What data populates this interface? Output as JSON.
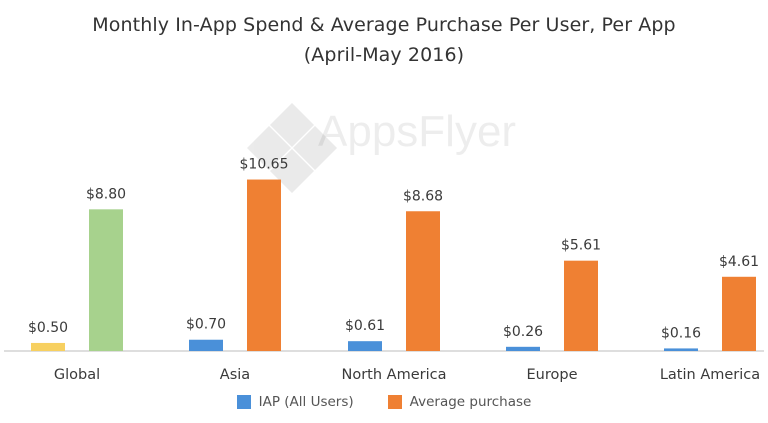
{
  "chart_data": {
    "type": "bar",
    "title": "Monthly In-App Spend & Average Purchase Per User, Per App",
    "subtitle": "(April-May 2016)",
    "categories": [
      "Global",
      "Asia",
      "North America",
      "Europe",
      "Latin America"
    ],
    "series": [
      {
        "name": "IAP (All Users)",
        "color": "#4a90d9",
        "values": [
          0.5,
          0.7,
          0.61,
          0.26,
          0.16
        ],
        "labels": [
          "$0.50",
          "$0.70",
          "$0.61",
          "$0.26",
          "$0.16"
        ]
      },
      {
        "name": "Average purchase",
        "color": "#ef8033",
        "values": [
          8.8,
          10.65,
          8.68,
          5.61,
          4.61
        ],
        "labels": [
          "$8.80",
          "$10.65",
          "$8.68",
          "$5.61",
          "$4.61"
        ]
      }
    ],
    "global_colors": {
      "iap": "#f7d060",
      "avg": "#a7d28d"
    },
    "ylim": [
      0,
      11.5
    ],
    "xlabel": "",
    "ylabel": "",
    "legend_position": "bottom-center",
    "grid": false
  },
  "watermark": {
    "text": "AppsFlyer"
  }
}
